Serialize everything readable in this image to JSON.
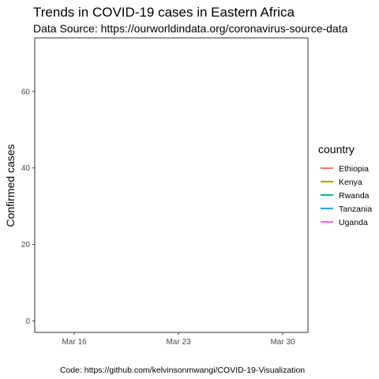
{
  "chart_data": {
    "type": "line",
    "title": "Trends in COVID-19 cases in Eastern Africa",
    "subtitle": "Data Source: https://ourworldindata.org/coronavirus-source-data",
    "caption": "Code: https://github.com/kelvinsonmwangi/COVID-19-Visualization",
    "xlabel": "",
    "ylabel": "Confirmed cases",
    "x_ticks": [
      "Mar 16",
      "Mar 23",
      "Mar 30"
    ],
    "y_ticks": [
      "0",
      "20",
      "40",
      "60"
    ],
    "ylim": [
      -3,
      74
    ],
    "grid": false,
    "legend": {
      "title": "country",
      "position": "right",
      "entries": [
        {
          "name": "Ethiopia",
          "color": "#F8766D"
        },
        {
          "name": "Kenya",
          "color": "#A3A500"
        },
        {
          "name": "Rwanda",
          "color": "#00BF7D"
        },
        {
          "name": "Tanzania",
          "color": "#00B0F6"
        },
        {
          "name": "Uganda",
          "color": "#E76BF3"
        }
      ]
    },
    "series": []
  }
}
